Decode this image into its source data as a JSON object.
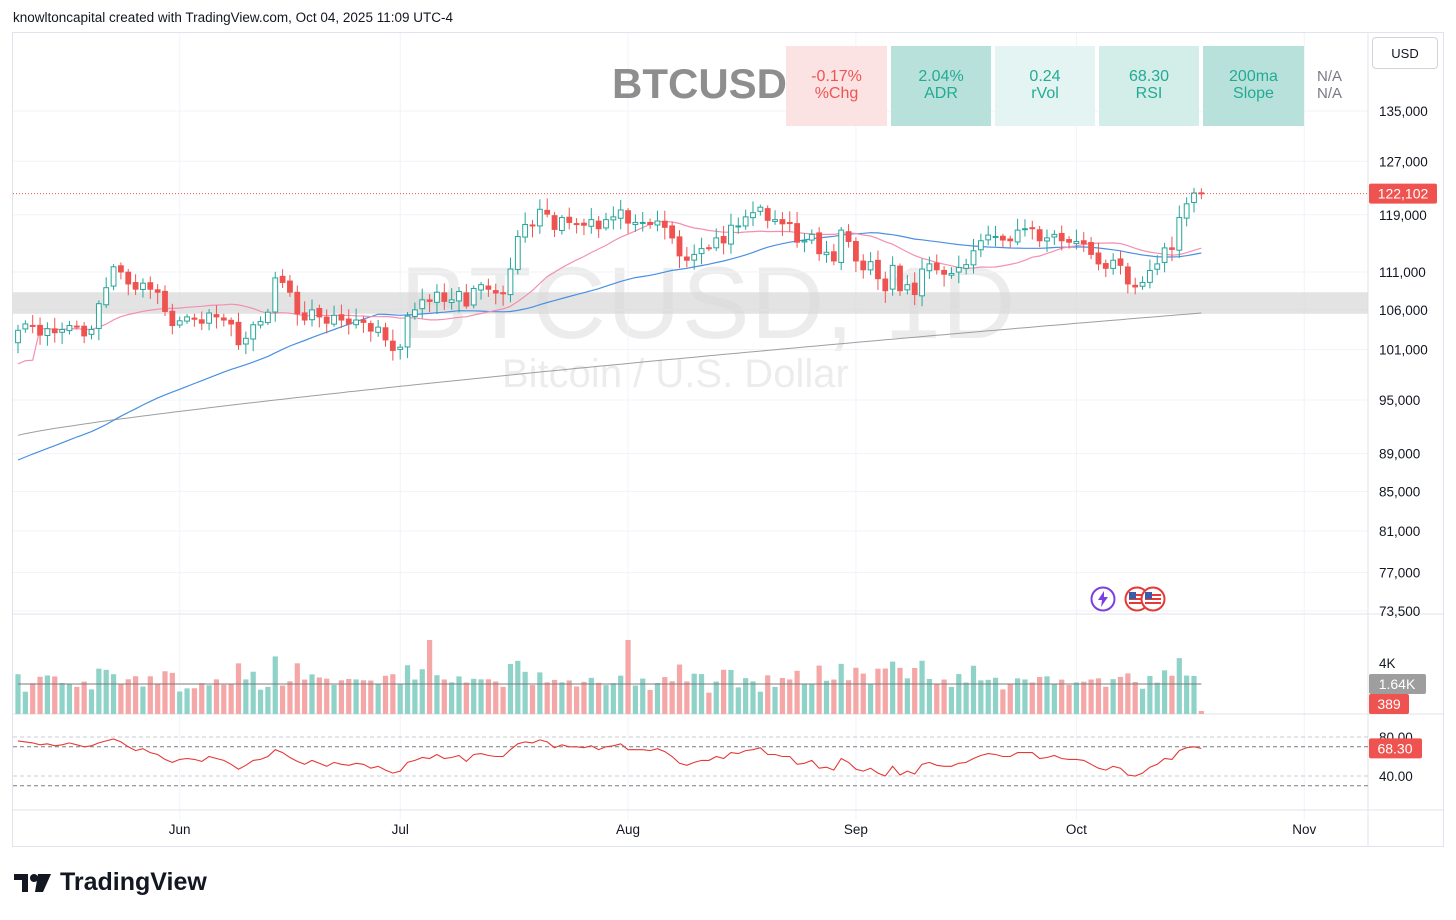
{
  "header": {
    "attribution": "knowltoncapital created with TradingView.com, Oct 04, 2025 11:09 UTC-4"
  },
  "currency_button": "USD",
  "watermark": {
    "symbol": "BTCUSD, 1D",
    "description": "Bitcoin / U.S. Dollar"
  },
  "symbol_title": "BTCUSD",
  "stat_boxes": [
    {
      "value": "-0.17%",
      "label": "%Chg",
      "bg": "#fbe3e3",
      "fg": "#f05252"
    },
    {
      "value": "2.04%",
      "label": "ADR",
      "bg": "#b9e1dc",
      "fg": "#22ab94"
    },
    {
      "value": "0.24",
      "label": "rVol",
      "bg": "#e4f4f2",
      "fg": "#22ab94"
    },
    {
      "value": "68.30",
      "label": "RSI",
      "bg": "#d3ede9",
      "fg": "#22ab94"
    },
    {
      "value": "200ma",
      "label": "Slope",
      "bg": "#b9e1dc",
      "fg": "#22ab94"
    }
  ],
  "na_labels": [
    "N/A",
    "N/A"
  ],
  "footer": {
    "brand": "TradingView"
  },
  "event_icons": [
    "lightning-event-icon",
    "us-flag-event-icon",
    "us-flag-event-icon"
  ],
  "colors": {
    "up": "#26a69a",
    "down": "#ef5350",
    "ma_fast": "#f48fb1",
    "ma_mid": "#4a90e2",
    "ma_slow": "#9e9e9e",
    "rsi": "#e53935"
  },
  "chart_data": {
    "type": "candlestick",
    "symbol": "BTCUSD",
    "timeframe": "1D",
    "price_axis": {
      "ticks": [
        135000,
        127000,
        119000,
        111000,
        106000,
        101000,
        95000,
        89000,
        85000,
        81000,
        77000,
        73500
      ],
      "tick_labels": [
        "135,000",
        "127,000",
        "119,000",
        "111,000",
        "106,000",
        "101,000",
        "95,000",
        "89,000",
        "85,000",
        "81,000",
        "77,000",
        "73,500"
      ],
      "scale": "log",
      "last_price": 122102,
      "last_price_label": "122,102"
    },
    "support_zone": [
      105500,
      108300
    ],
    "x_axis": {
      "labels": [
        "Jun",
        "Jul",
        "Aug",
        "Sep",
        "Oct",
        "Nov"
      ],
      "label_dates": [
        "2025-06-01",
        "2025-07-01",
        "2025-08-01",
        "2025-09-01",
        "2025-10-01",
        "2025-11-01"
      ]
    },
    "start_date": "2025-05-10",
    "end_date": "2025-10-04",
    "closes": [
      103400,
      104200,
      104000,
      102800,
      103600,
      103100,
      103500,
      104000,
      103900,
      102700,
      103500,
      106800,
      108900,
      111700,
      111000,
      109400,
      108700,
      109500,
      108700,
      108300,
      105800,
      104000,
      104600,
      105100,
      104800,
      104300,
      105600,
      105100,
      104700,
      104200,
      101600,
      102400,
      104100,
      104500,
      105700,
      110200,
      109600,
      108300,
      105500,
      104700,
      106000,
      105100,
      104300,
      105300,
      104700,
      104200,
      104700,
      104400,
      103300,
      103800,
      102200,
      100900,
      101300,
      105200,
      106000,
      107300,
      107100,
      108300,
      107100,
      107300,
      108400,
      106500,
      108800,
      109300,
      108700,
      108200,
      108100,
      111400,
      115900,
      117600,
      117400,
      119800,
      119100,
      116900,
      118600,
      117900,
      117700,
      117500,
      118300,
      117000,
      118300,
      118700,
      119700,
      117800,
      117900,
      117900,
      117600,
      118100,
      117200,
      115700,
      113200,
      112600,
      113400,
      114200,
      114200,
      115700,
      115000,
      117500,
      117400,
      118700,
      119300,
      120100,
      118200,
      118300,
      117700,
      117800,
      115100,
      115300,
      116200,
      113500,
      113700,
      112500,
      116800,
      115200,
      112500,
      111300,
      112400,
      110100,
      108500,
      111900,
      108500,
      109300,
      108000,
      111400,
      112100,
      111300,
      110700,
      110800,
      111600,
      112000,
      113900,
      115300,
      116100,
      115900,
      115400,
      115300,
      116800,
      117000,
      117000,
      115300,
      115700,
      116200,
      115300,
      115100,
      115200,
      114900,
      113400,
      112100,
      111500,
      112600,
      111900,
      109400,
      109000,
      109600,
      111200,
      112100,
      114300,
      114100,
      118600,
      120600,
      122200,
      122102
    ],
    "ma_fast": {
      "name": "20 MA",
      "values": "20-day simple moving average of closes"
    },
    "ma_mid": {
      "name": "50 MA"
    },
    "ma_slow": {
      "name": "200 MA"
    },
    "volume": {
      "ticks": [
        "4K"
      ],
      "current_ma_label": "1.64K",
      "current_volume_label": "389"
    },
    "rsi": {
      "levels": [
        80,
        70,
        40,
        30
      ],
      "tick_labels": [
        "80.00",
        "40.00"
      ],
      "current": 68.3,
      "current_label": "68.30",
      "values": [
        76,
        75,
        74,
        72,
        73,
        71,
        72,
        74,
        72,
        70,
        71,
        74,
        76,
        78,
        75,
        70,
        66,
        68,
        64,
        62,
        57,
        54,
        57,
        58,
        57,
        55,
        60,
        58,
        56,
        52,
        47,
        51,
        56,
        57,
        60,
        67,
        64,
        59,
        55,
        52,
        56,
        53,
        50,
        54,
        52,
        51,
        53,
        52,
        48,
        50,
        46,
        43,
        45,
        54,
        56,
        59,
        58,
        62,
        58,
        59,
        61,
        55,
        62,
        63,
        61,
        60,
        60,
        67,
        73,
        75,
        74,
        77,
        75,
        69,
        72,
        70,
        70,
        69,
        71,
        67,
        70,
        71,
        73,
        67,
        67,
        67,
        66,
        68,
        65,
        60,
        53,
        51,
        54,
        56,
        56,
        60,
        58,
        64,
        63,
        66,
        67,
        69,
        62,
        62,
        60,
        60,
        52,
        53,
        56,
        48,
        49,
        46,
        58,
        54,
        47,
        45,
        48,
        43,
        40,
        50,
        41,
        45,
        42,
        52,
        54,
        51,
        50,
        50,
        53,
        54,
        58,
        61,
        63,
        62,
        60,
        60,
        64,
        64,
        64,
        58,
        59,
        61,
        58,
        57,
        57,
        56,
        52,
        48,
        46,
        50,
        48,
        41,
        40,
        43,
        49,
        52,
        58,
        57,
        66,
        69,
        70,
        68.3
      ]
    }
  }
}
